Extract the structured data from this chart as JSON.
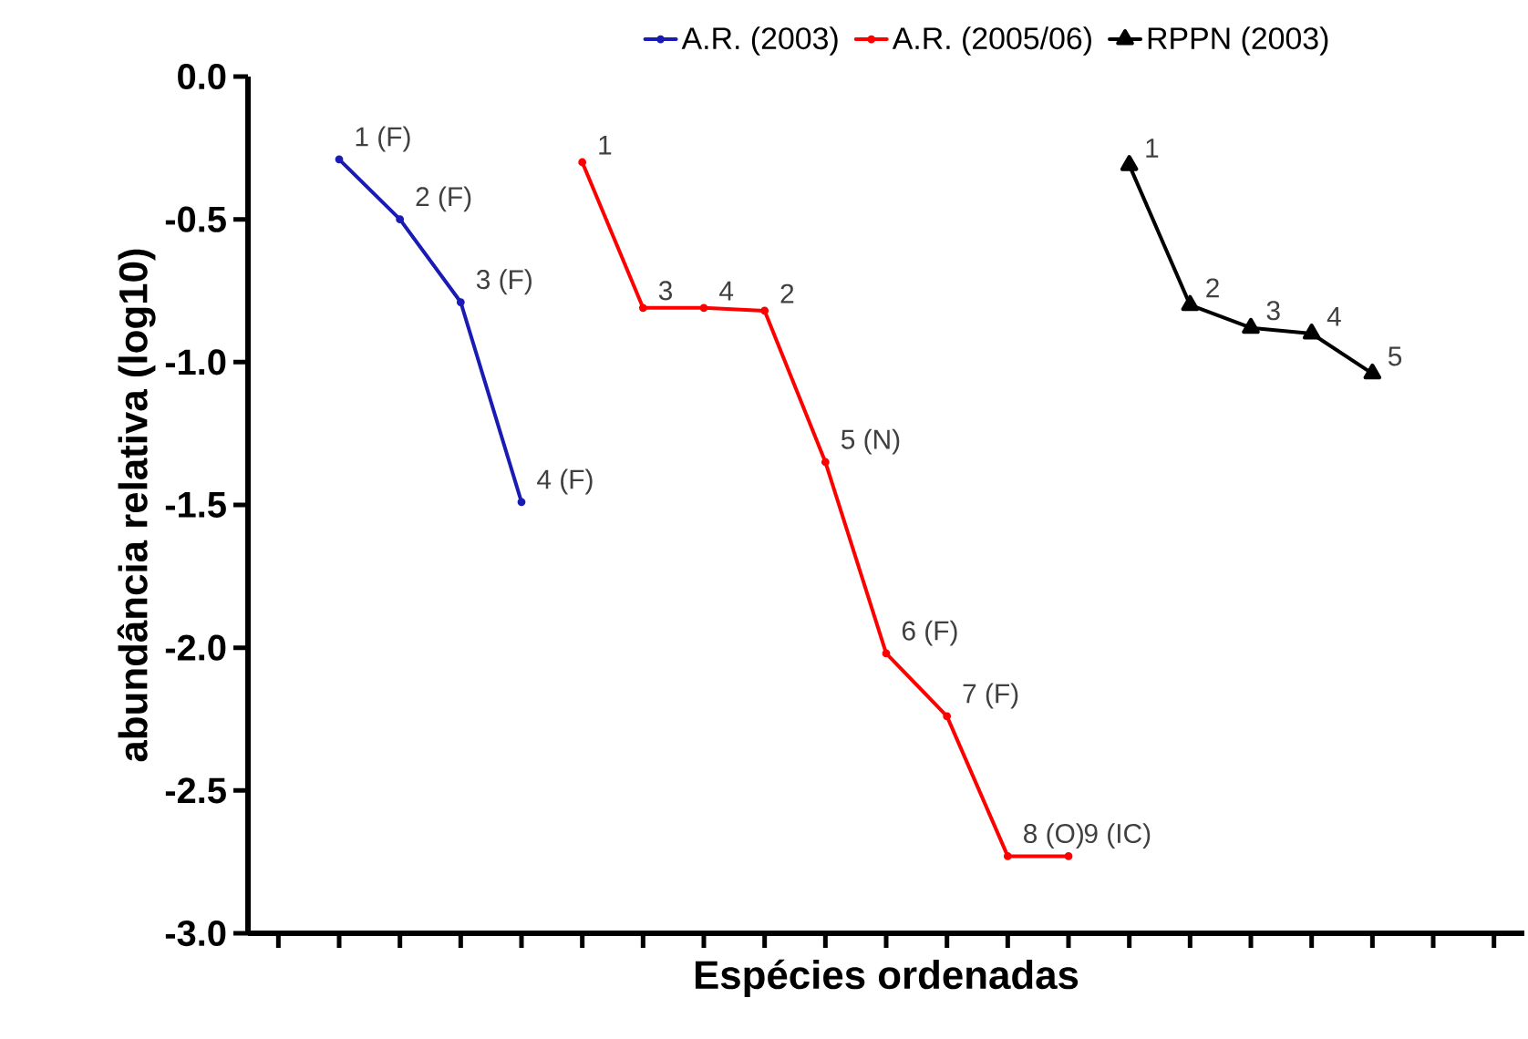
{
  "chart_data": {
    "type": "line",
    "xlabel": "Espécies ordenadas",
    "ylabel": "abundância relativa (log10)",
    "categories": [
      null,
      null,
      null,
      null,
      null,
      null,
      null,
      null,
      null,
      null,
      null,
      null,
      null,
      null,
      null,
      null,
      null,
      null,
      null,
      null,
      null
    ],
    "ylim": [
      -3,
      0
    ],
    "yticks": [
      {
        "value": 0,
        "label": "0.0"
      },
      -0.5,
      {
        "value": -1,
        "label": "-1.0"
      },
      -1.5,
      {
        "value": -2,
        "label": "-2.0"
      },
      -2.5,
      {
        "value": -3,
        "label": "-3.0"
      }
    ],
    "legend": "top",
    "line_style": "solid",
    "grid": false,
    "series": [
      {
        "name": "A.R. (2003)",
        "color": "#1a1ab4",
        "marker": "circle",
        "values": [
          null,
          -0.29,
          -0.5,
          -0.79,
          -1.49,
          null,
          null,
          null,
          null,
          null,
          null,
          null,
          null,
          null,
          null,
          null,
          null,
          null,
          null,
          null,
          null
        ]
      },
      {
        "name": "A.R. (2005/06)",
        "color": "#ff0000",
        "marker": "circle",
        "values": [
          null,
          null,
          null,
          null,
          null,
          -0.3,
          -0.81,
          -0.81,
          -0.82,
          -1.35,
          -2.02,
          -2.24,
          -2.73,
          -2.73,
          null,
          null,
          null,
          null,
          null,
          null,
          null
        ]
      },
      {
        "name": "RPPN (2003)",
        "color": "#000000",
        "marker": "triangle",
        "values": [
          null,
          null,
          null,
          null,
          null,
          null,
          null,
          null,
          null,
          null,
          null,
          null,
          null,
          null,
          -0.31,
          -0.8,
          -0.88,
          -0.9,
          -1.04,
          null,
          null
        ]
      }
    ],
    "annotations": [
      "1 (F)",
      "2 (F)",
      "3 (F)",
      "4 (F)",
      "1",
      "3",
      "4",
      "2",
      "5 (N)",
      "6 (F)",
      "7 (F)",
      "8 (O)",
      "9 (IC)",
      "1",
      "2",
      "3",
      "4",
      "5"
    ]
  }
}
